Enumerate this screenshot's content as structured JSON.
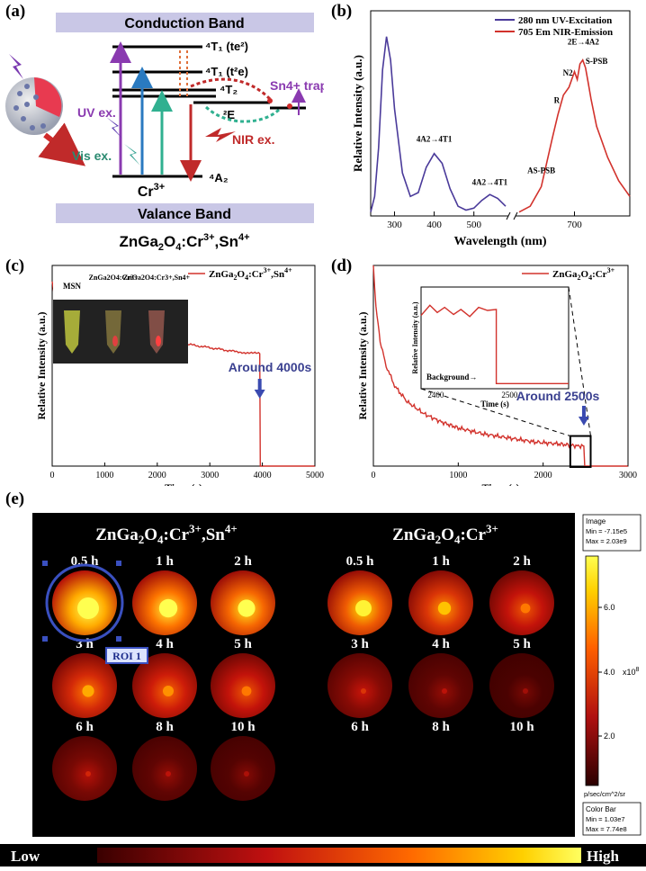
{
  "panel_a": {
    "label": "(a)",
    "conduction_band": "Conduction Band",
    "valence_band": "Valance Band",
    "material": "ZnGa2O4:Cr3+,Sn4+",
    "levels": {
      "t1_te2": "4T1 (te2)",
      "t1_t2e": "4T1 (t2e)",
      "t2": "4T2",
      "e2": "2E",
      "a2": "4A2"
    },
    "ion": "Cr3+",
    "uv_ex": "UV ex.",
    "vis_ex": "Vis ex.",
    "nir_ex": "NIR ex.",
    "traps": "Sn4+ traps"
  },
  "panel_b": {
    "label": "(b)",
    "chart_data": {
      "type": "line",
      "xlabel": "Wavelength (nm)",
      "ylabel": "Relative Intensity (a.u.)",
      "x_ticks_excitation": [
        300,
        400,
        500
      ],
      "x_ticks_emission": [
        700
      ],
      "legend": [
        "280 nm UV-Excitation",
        "705 Em NIR-Emission"
      ],
      "series": [
        {
          "name": "280 nm UV-Excitation",
          "color": "#4a3a9a",
          "x": [
            240,
            250,
            260,
            270,
            280,
            290,
            300,
            320,
            340,
            360,
            380,
            400,
            420,
            440,
            460,
            480,
            500,
            520,
            540,
            560,
            580
          ],
          "y": [
            0.02,
            0.1,
            0.35,
            0.75,
            0.92,
            0.8,
            0.55,
            0.22,
            0.1,
            0.12,
            0.25,
            0.32,
            0.27,
            0.14,
            0.05,
            0.03,
            0.04,
            0.08,
            0.11,
            0.09,
            0.05
          ]
        },
        {
          "name": "705 Em NIR-Emission",
          "color": "#d2322c",
          "x": [
            600,
            620,
            640,
            660,
            670,
            680,
            690,
            700,
            705,
            710,
            715,
            720,
            725,
            730,
            740,
            760,
            780,
            800
          ],
          "y": [
            0.02,
            0.05,
            0.15,
            0.4,
            0.52,
            0.62,
            0.66,
            0.74,
            0.7,
            0.78,
            0.8,
            0.76,
            0.68,
            0.6,
            0.46,
            0.3,
            0.18,
            0.1
          ]
        }
      ],
      "annotations": [
        "4A2→4T1",
        "4A2→4T1",
        "AS-PSB",
        "R",
        "N2",
        "2E→4A2",
        "S-PSB"
      ]
    }
  },
  "panel_c": {
    "label": "(c)",
    "chart_data": {
      "type": "line",
      "xlabel": "Time (s)",
      "ylabel": "Relative Intensity (a.u.)",
      "xlim": [
        0,
        5000
      ],
      "x_ticks": [
        0,
        1000,
        2000,
        3000,
        4000,
        5000
      ],
      "legend": [
        "ZnGa2O4:Cr3+,Sn4+"
      ],
      "annotation": "Around 4000s",
      "series": [
        {
          "name": "ZnGa2O4:Cr3+,Sn4+",
          "color": "#d2322c",
          "x": [
            0,
            50,
            200,
            500,
            1000,
            1500,
            2000,
            2500,
            3000,
            3500,
            3950,
            3960,
            4000,
            5000
          ],
          "y": [
            0.92,
            0.83,
            0.77,
            0.73,
            0.69,
            0.66,
            0.63,
            0.61,
            0.59,
            0.57,
            0.56,
            0.0,
            0.0,
            0.0
          ]
        }
      ]
    },
    "inset_labels": [
      "MSN",
      "ZnGa2O4:Cr3+",
      "ZnGa2O4:Cr3+,Sn4+"
    ]
  },
  "panel_d": {
    "label": "(d)",
    "chart_data": {
      "type": "line",
      "xlabel": "Time (s)",
      "ylabel": "Relative Intensity (a.u.)",
      "xlim": [
        0,
        3000
      ],
      "x_ticks": [
        0,
        1000,
        2000,
        3000
      ],
      "legend": [
        "ZnGa2O4:Cr3+"
      ],
      "annotation": "Around 2500s",
      "series": [
        {
          "name": "ZnGa2O4:Cr3+",
          "color": "#d2322c",
          "x": [
            0,
            30,
            80,
            150,
            250,
            400,
            600,
            800,
            1000,
            1300,
            1600,
            1900,
            2200,
            2400,
            2480,
            2490,
            2600,
            3000
          ],
          "y": [
            1.0,
            0.8,
            0.62,
            0.5,
            0.4,
            0.32,
            0.26,
            0.22,
            0.19,
            0.16,
            0.14,
            0.12,
            0.11,
            0.1,
            0.1,
            0.0,
            0.0,
            0.0
          ]
        }
      ]
    },
    "inset": {
      "ylabel": "Relative Intensity (a.u.)",
      "xlabel": "Time (s)",
      "x_ticks": [
        2400,
        2500
      ],
      "background": "Background→"
    }
  },
  "panel_e": {
    "label": "(e)",
    "group1_title": "ZnGa2O4:Cr3+,Sn4+",
    "group2_title": "ZnGa2O4:Cr3+",
    "group1_times": [
      "0.5 h",
      "1 h",
      "2 h",
      "3 h",
      "4 h",
      "5 h",
      "6 h",
      "8 h",
      "10 h"
    ],
    "group2_times": [
      "0.5 h",
      "1 h",
      "2 h",
      "3 h",
      "4 h",
      "5 h",
      "6 h",
      "8 h",
      "10 h"
    ],
    "group1_levels": [
      1.0,
      0.85,
      0.8,
      0.55,
      0.5,
      0.45,
      0.2,
      0.12,
      0.08
    ],
    "group2_levels": [
      0.75,
      0.6,
      0.45,
      0.25,
      0.12,
      0.05,
      0.0,
      0.0,
      0.0
    ],
    "roi": "ROI 1",
    "image_box": {
      "title": "Image",
      "min": "Min = -7.15e5",
      "max": "Max = 2.03e9"
    },
    "colorbar_ticks": [
      "6.0",
      "4.0",
      "2.0"
    ],
    "colorbar_unit": "x10",
    "colorbar_exp": "8",
    "units": "p/sec/cm^2/sr",
    "colorbar_box": {
      "title": "Color Bar",
      "min": "Min = 1.03e7",
      "max": "Max = 7.74e8"
    },
    "low": "Low",
    "high": "High"
  }
}
